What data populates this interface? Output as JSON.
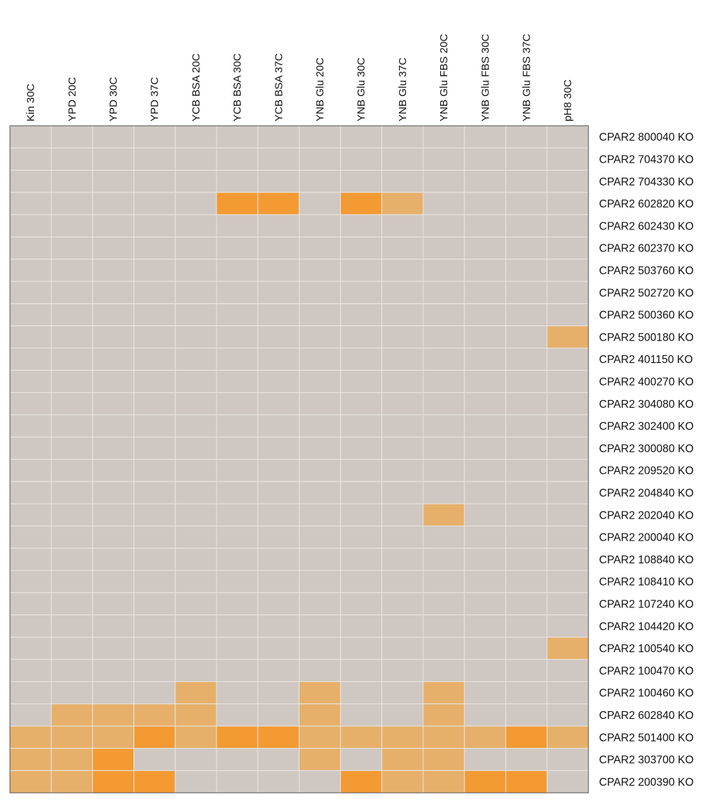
{
  "chart_data": {
    "type": "heatmap",
    "columns": [
      "Kin 30C",
      "YPD 20C",
      "YPD 30C",
      "YPD 37C",
      "YCB BSA 20C",
      "YCB BSA 30C",
      "YCB BSA 37C",
      "YNB Glu 20C",
      "YNB Glu 30C",
      "YNB Glu 37C",
      "YNB Glu FBS 20C",
      "YNB Glu FBS 30C",
      "YNB Glu FBS 37C",
      "pH8 30C"
    ],
    "rows": [
      "CPAR2 800040 KO",
      "CPAR2 704370 KO",
      "CPAR2 704330 KO",
      "CPAR2 602820 KO",
      "CPAR2 602430 KO",
      "CPAR2 602370 KO",
      "CPAR2 503760 KO",
      "CPAR2 502720 KO",
      "CPAR2 500360 KO",
      "CPAR2 500180 KO",
      "CPAR2 401150 KO",
      "CPAR2 400270 KO",
      "CPAR2 304080 KO",
      "CPAR2 302400 KO",
      "CPAR2 300080 KO",
      "CPAR2 209520 KO",
      "CPAR2 204840 KO",
      "CPAR2 202040 KO",
      "CPAR2 200040 KO",
      "CPAR2 108840 KO",
      "CPAR2 108410 KO",
      "CPAR2 107240 KO",
      "CPAR2 104420 KO",
      "CPAR2 100540 KO",
      "CPAR2 100470 KO",
      "CPAR2 100460 KO",
      "CPAR2 602840 KO",
      "CPAR2 501400 KO",
      "CPAR2 303700 KO",
      "CPAR2 200390 KO"
    ],
    "levels": [
      [
        0,
        0,
        0,
        0,
        0,
        0,
        0,
        0,
        0,
        0,
        0,
        0,
        0,
        0
      ],
      [
        0,
        0,
        0,
        0,
        0,
        0,
        0,
        0,
        0,
        0,
        0,
        0,
        0,
        0
      ],
      [
        0,
        0,
        0,
        0,
        0,
        0,
        0,
        0,
        0,
        0,
        0,
        0,
        0,
        0
      ],
      [
        0,
        0,
        0,
        0,
        0,
        2,
        2,
        0,
        2,
        1,
        0,
        0,
        0,
        0
      ],
      [
        0,
        0,
        0,
        0,
        0,
        0,
        0,
        0,
        0,
        0,
        0,
        0,
        0,
        0
      ],
      [
        0,
        0,
        0,
        0,
        0,
        0,
        0,
        0,
        0,
        0,
        0,
        0,
        0,
        0
      ],
      [
        0,
        0,
        0,
        0,
        0,
        0,
        0,
        0,
        0,
        0,
        0,
        0,
        0,
        0
      ],
      [
        0,
        0,
        0,
        0,
        0,
        0,
        0,
        0,
        0,
        0,
        0,
        0,
        0,
        0
      ],
      [
        0,
        0,
        0,
        0,
        0,
        0,
        0,
        0,
        0,
        0,
        0,
        0,
        0,
        0
      ],
      [
        0,
        0,
        0,
        0,
        0,
        0,
        0,
        0,
        0,
        0,
        0,
        0,
        0,
        1
      ],
      [
        0,
        0,
        0,
        0,
        0,
        0,
        0,
        0,
        0,
        0,
        0,
        0,
        0,
        0
      ],
      [
        0,
        0,
        0,
        0,
        0,
        0,
        0,
        0,
        0,
        0,
        0,
        0,
        0,
        0
      ],
      [
        0,
        0,
        0,
        0,
        0,
        0,
        0,
        0,
        0,
        0,
        0,
        0,
        0,
        0
      ],
      [
        0,
        0,
        0,
        0,
        0,
        0,
        0,
        0,
        0,
        0,
        0,
        0,
        0,
        0
      ],
      [
        0,
        0,
        0,
        0,
        0,
        0,
        0,
        0,
        0,
        0,
        0,
        0,
        0,
        0
      ],
      [
        0,
        0,
        0,
        0,
        0,
        0,
        0,
        0,
        0,
        0,
        0,
        0,
        0,
        0
      ],
      [
        0,
        0,
        0,
        0,
        0,
        0,
        0,
        0,
        0,
        0,
        0,
        0,
        0,
        0
      ],
      [
        0,
        0,
        0,
        0,
        0,
        0,
        0,
        0,
        0,
        0,
        1,
        0,
        0,
        0
      ],
      [
        0,
        0,
        0,
        0,
        0,
        0,
        0,
        0,
        0,
        0,
        0,
        0,
        0,
        0
      ],
      [
        0,
        0,
        0,
        0,
        0,
        0,
        0,
        0,
        0,
        0,
        0,
        0,
        0,
        0
      ],
      [
        0,
        0,
        0,
        0,
        0,
        0,
        0,
        0,
        0,
        0,
        0,
        0,
        0,
        0
      ],
      [
        0,
        0,
        0,
        0,
        0,
        0,
        0,
        0,
        0,
        0,
        0,
        0,
        0,
        0
      ],
      [
        0,
        0,
        0,
        0,
        0,
        0,
        0,
        0,
        0,
        0,
        0,
        0,
        0,
        0
      ],
      [
        0,
        0,
        0,
        0,
        0,
        0,
        0,
        0,
        0,
        0,
        0,
        0,
        0,
        1
      ],
      [
        0,
        0,
        0,
        0,
        0,
        0,
        0,
        0,
        0,
        0,
        0,
        0,
        0,
        0
      ],
      [
        0,
        0,
        0,
        0,
        1,
        0,
        0,
        1,
        0,
        0,
        1,
        0,
        0,
        0
      ],
      [
        0,
        1,
        1,
        1,
        1,
        0,
        0,
        1,
        0,
        0,
        1,
        0,
        0,
        0
      ],
      [
        1,
        1,
        1,
        2,
        1,
        2,
        2,
        1,
        1,
        1,
        1,
        1,
        2,
        1
      ],
      [
        1,
        1,
        2,
        0,
        0,
        0,
        0,
        1,
        0,
        1,
        1,
        0,
        0,
        0
      ],
      [
        1,
        1,
        2,
        2,
        0,
        0,
        0,
        0,
        2,
        1,
        1,
        2,
        2,
        0
      ]
    ],
    "level_colors": [
      "#cfc8c2",
      "#e6b06a",
      "#f39a32"
    ],
    "grid_color": "#e9e5e1",
    "border_color": "#555555"
  }
}
